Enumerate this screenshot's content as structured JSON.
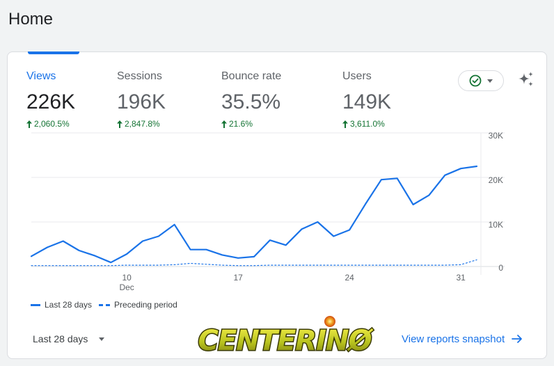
{
  "page": {
    "title": "Home"
  },
  "metrics": [
    {
      "label": "Views",
      "value": "226K",
      "change": "2,060.5%"
    },
    {
      "label": "Sessions",
      "value": "196K",
      "change": "2,847.8%"
    },
    {
      "label": "Bounce rate",
      "value": "35.5%",
      "change": "21.6%"
    },
    {
      "label": "Users",
      "value": "149K",
      "change": "3,611.0%"
    }
  ],
  "colors": {
    "accent": "#1a73e8",
    "positive": "#137333",
    "gridline": "#e8eaed"
  },
  "icons": {
    "status": "check-circle-icon",
    "sparkle": "sparkle-icon",
    "arrow": "arrow-right-icon"
  },
  "chart_data": {
    "type": "line",
    "y_ticks": [
      "30K",
      "20K",
      "10K",
      "0"
    ],
    "ylim": [
      0,
      30000
    ],
    "x_ticks": [
      {
        "label": "10",
        "sub": "Dec",
        "x": 6
      },
      {
        "label": "17",
        "sub": "",
        "x": 13
      },
      {
        "label": "24",
        "sub": "",
        "x": 20
      },
      {
        "label": "31",
        "sub": "",
        "x": 27
      }
    ],
    "x": [
      0,
      1,
      2,
      3,
      4,
      5,
      6,
      7,
      8,
      9,
      10,
      11,
      12,
      13,
      14,
      15,
      16,
      17,
      18,
      19,
      20,
      21,
      22,
      23,
      24,
      25,
      26,
      27,
      28
    ],
    "series": [
      {
        "name": "Last 28 days",
        "style": "solid",
        "values": [
          2300,
          4300,
          5700,
          3600,
          2400,
          900,
          2800,
          5700,
          6800,
          9400,
          3800,
          3800,
          2600,
          1900,
          2200,
          5900,
          4800,
          8400,
          10000,
          6800,
          8200,
          14000,
          19500,
          19800,
          13900,
          16000,
          20500,
          22000,
          22500
        ]
      },
      {
        "name": "Preceding period",
        "style": "dashed",
        "values": [
          200,
          200,
          200,
          200,
          200,
          200,
          300,
          300,
          300,
          400,
          700,
          500,
          300,
          200,
          200,
          300,
          300,
          300,
          300,
          300,
          300,
          300,
          300,
          300,
          300,
          300,
          300,
          400,
          1500
        ]
      }
    ],
    "legend_position": "bottom-left",
    "grid": true
  },
  "footer": {
    "date_range": "Last 28 days",
    "snapshot_link": "View reports snapshot",
    "logo_text": "CENTERINØ"
  }
}
